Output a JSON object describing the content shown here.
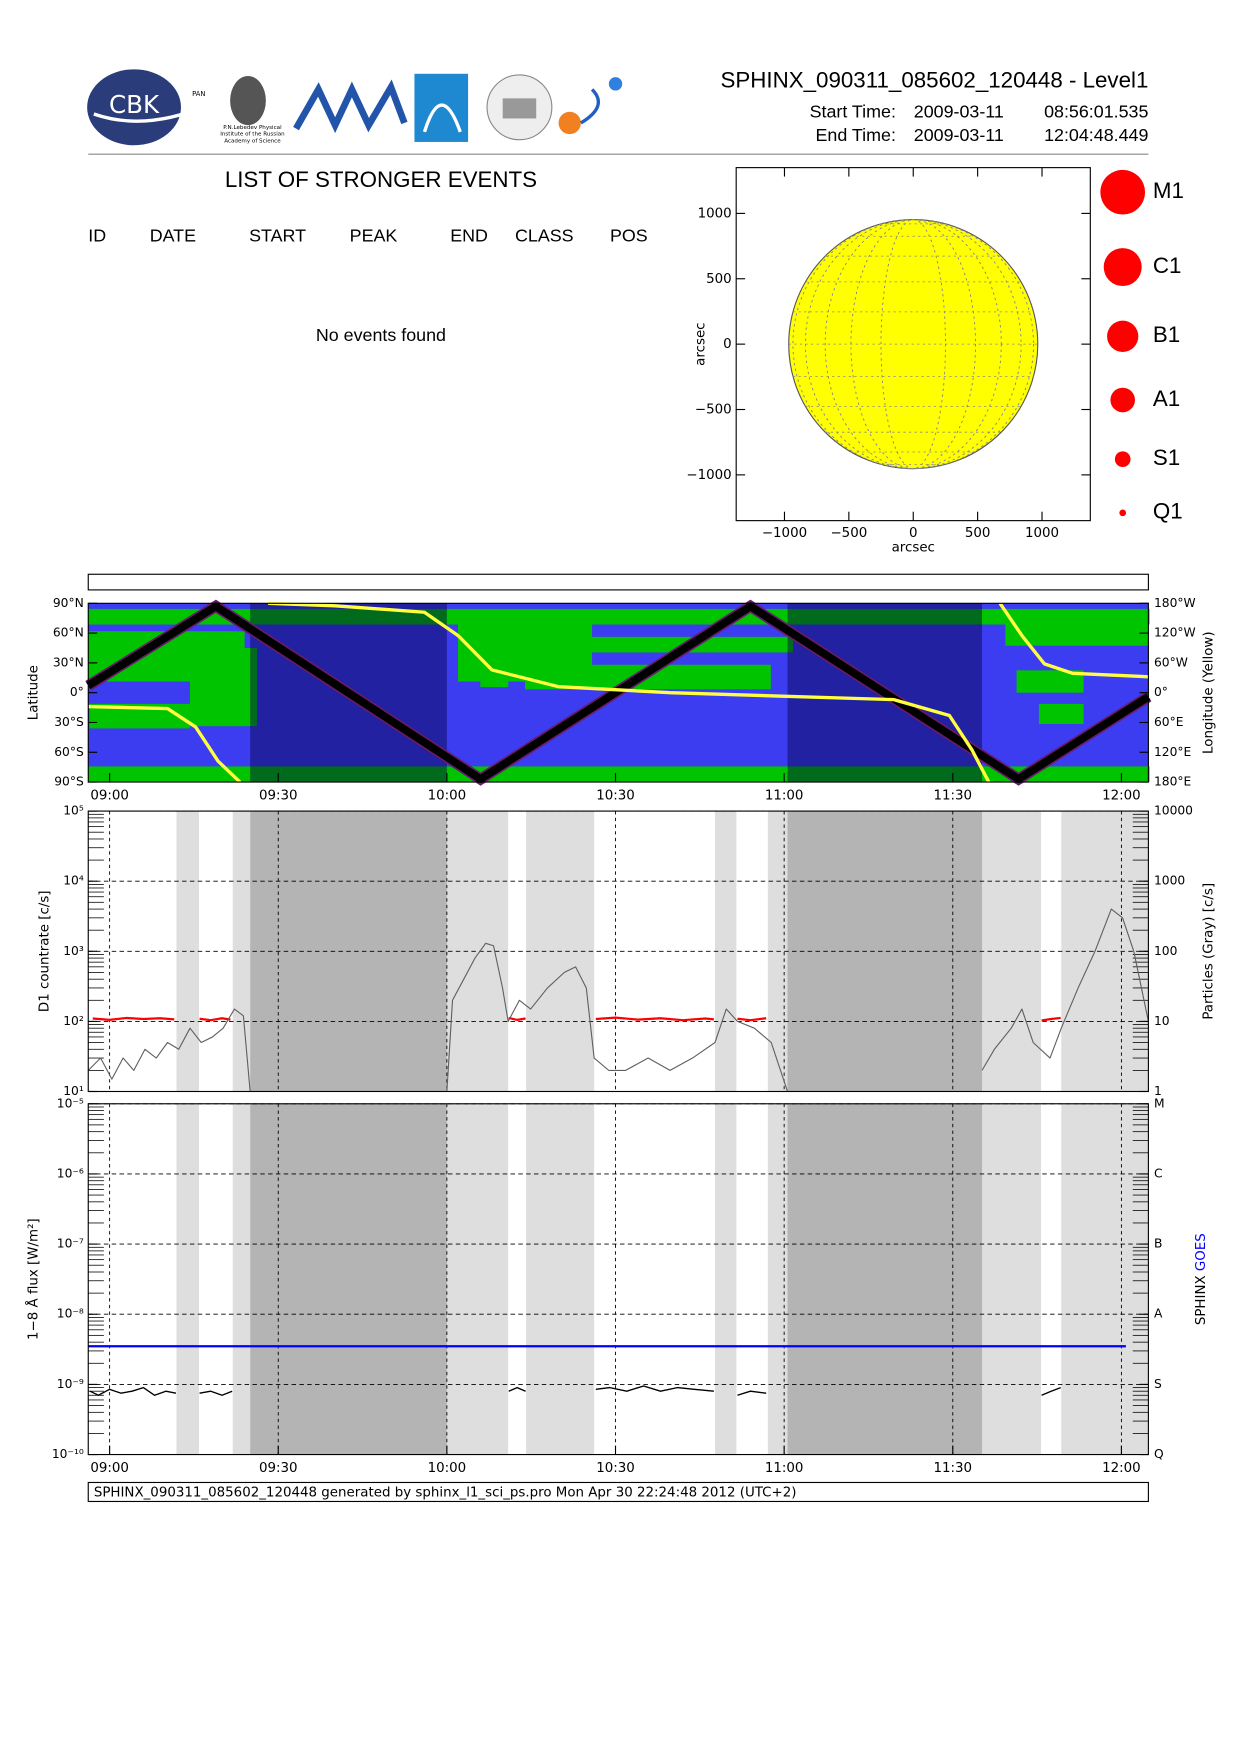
{
  "header": {
    "title": "SPHINX_090311_085602_120448 - Level1",
    "start_label": "Start Time:",
    "start_date": "2009-03-11",
    "start_time": "08:56:01.535",
    "end_label": "End Time:",
    "end_date": "2009-03-11",
    "end_time": "12:04:48.449",
    "logos": {
      "cbk": "CBK",
      "pan": "PAN",
      "lebedev": [
        "P.N.Lebedev Physical",
        "Institute of the Russian",
        "Academy of Science"
      ]
    }
  },
  "events": {
    "title": "LIST OF STRONGER EVENTS",
    "columns": [
      "ID",
      "DATE",
      "START",
      "PEAK",
      "END",
      "CLASS",
      "POS"
    ],
    "empty": "No events found"
  },
  "flare_legend": [
    "M1",
    "C1",
    "B1",
    "A1",
    "S1",
    "Q1"
  ],
  "shading": {
    "light": [
      [
        551.9,
        555.9
      ],
      [
        561.9,
        565.0
      ],
      [
        600.0,
        610.9
      ],
      [
        614.1,
        626.2
      ],
      [
        647.7,
        651.5
      ],
      [
        657.1,
        660.6
      ],
      [
        695.2,
        705.7
      ],
      [
        709.3,
        724.8
      ]
    ],
    "dark": [
      [
        565.0,
        600.0
      ],
      [
        660.6,
        695.2
      ]
    ]
  },
  "footer": "SPHINX_090311_085602_120448 generated by sphinx_l1_sci_ps.pro Mon Apr 30 22:24:48 2012 (UTC+2)",
  "chart_data": [
    {
      "type": "disk",
      "xlabel": "arcsec",
      "ylabel": "arcsec",
      "xlim": [
        -1375,
        1375
      ],
      "ylim": [
        -1350,
        1350
      ],
      "xticks": [
        {
          "value": -1000,
          "label": "−1000"
        },
        {
          "value": -500,
          "label": "−500"
        },
        0,
        500,
        1000
      ],
      "yticks": [
        {
          "value": -1000,
          "label": "−1000"
        },
        {
          "value": -500,
          "label": "−500"
        },
        0,
        500,
        1000
      ],
      "disk_radius": 967,
      "disk_color": "#ffff00"
    },
    {
      "type": "line",
      "ylabel": "Latitude",
      "y2label": "Longitude (Yellow)",
      "background": "#3c3cf0",
      "xlim": [
        536.2,
        724.8
      ],
      "xticks": [
        {
          "value": 540,
          "label": "09:00"
        },
        {
          "value": 570,
          "label": "09:30"
        },
        {
          "value": 600,
          "label": "10:00"
        },
        {
          "value": 630,
          "label": "10:30"
        },
        {
          "value": 660,
          "label": "11:00"
        },
        {
          "value": 690,
          "label": "11:30"
        },
        {
          "value": 720,
          "label": "12:00"
        }
      ],
      "ylim": [
        -90,
        90
      ],
      "yticks": [
        {
          "value": 90,
          "label": "90°N"
        },
        {
          "value": 60,
          "label": "60°N"
        },
        {
          "value": 30,
          "label": "30°N"
        },
        {
          "value": 0,
          "label": "0°"
        },
        {
          "value": -30,
          "label": "30°S"
        },
        {
          "value": -60,
          "label": "60°S"
        },
        {
          "value": -90,
          "label": "90°S"
        }
      ],
      "y2lim": [
        180,
        -180
      ],
      "y2ticks": [
        {
          "value": -180,
          "label": "180°W"
        },
        {
          "value": -120,
          "label": "120°W"
        },
        {
          "value": -60,
          "label": "60°W"
        },
        {
          "value": 0,
          "label": "0°"
        },
        {
          "value": 60,
          "label": "60°E"
        },
        {
          "value": 120,
          "label": "120°E"
        },
        {
          "value": 180,
          "label": "180°E"
        }
      ],
      "series": [
        {
          "color": "#000000",
          "x": [
            536.2,
            558.9,
            606.0,
            654.0,
            701.7,
            724.8
          ],
          "values": [
            7,
            87,
            -87,
            87,
            -87,
            -4
          ]
        },
        {
          "color": "#ffff40",
          "axis": "y2",
          "x": [
            536.2,
            550.3,
            555.3,
            559.3,
            563.2,
            565.5,
            568.2,
            580.1,
            596.0,
            602.0,
            608.0,
            619.9,
            639.7,
            659.6,
            679.5,
            689.4,
            693.4,
            696.4,
            697.4,
            698.4,
            702.3,
            706.3,
            711.3,
            724.8
          ],
          "values": [
            28,
            32,
            69,
            138,
            180,
            null,
            -180,
            -175,
            -162,
            -115,
            -46,
            -12,
            0,
            7,
            14,
            46,
            115,
            180,
            null,
            -180,
            -115,
            -58,
            -39,
            -32
          ]
        }
      ]
    },
    {
      "type": "line",
      "log_y": true,
      "ylabel": "D1 countrate [c/s]",
      "y2label": "Particles (Gray) [c/s]",
      "xlim": [
        536.2,
        724.8
      ],
      "ylim": [
        10,
        100000
      ],
      "yticks": [
        {
          "value": 10,
          "label": "10¹"
        },
        {
          "value": 100,
          "label": "10²"
        },
        {
          "value": 1000,
          "label": "10³"
        },
        {
          "value": 10000,
          "label": "10⁴"
        },
        {
          "value": 100000,
          "label": "10⁵"
        }
      ],
      "y2lim": [
        1,
        10000
      ],
      "y2ticks": [
        1,
        10,
        100,
        1000,
        10000
      ],
      "series": [
        {
          "color": "#ff0000",
          "x": [
            537,
            540,
            543,
            546,
            549,
            551.5,
            553.5,
            556,
            558,
            560,
            561.5,
            585,
            611,
            612.5,
            614,
            620,
            626.5,
            630,
            634,
            638,
            642,
            646,
            647.5,
            649.5,
            651.7,
            654,
            656.8,
            680,
            705.8,
            707.5,
            709.2
          ],
          "values": [
            110,
            105,
            112,
            108,
            111,
            107,
            null,
            109,
            104,
            111,
            106,
            null,
            112,
            105,
            110,
            null,
            108,
            113,
            106,
            111,
            104,
            110,
            107,
            null,
            109,
            104,
            111,
            null,
            103,
            108,
            112
          ]
        },
        {
          "color": "#606060",
          "axis": "y2",
          "x": [
            536.2,
            538.4,
            540.4,
            542.4,
            544.3,
            546.3,
            548.3,
            550.3,
            552.3,
            554.3,
            556.3,
            558.3,
            560.2,
            562.2,
            563.8,
            565.0,
            568.2,
            600.0,
            601.0,
            603.0,
            605.0,
            606.9,
            608.3,
            609.9,
            610.9,
            612.9,
            614.9,
            617.9,
            620.9,
            622.9,
            624.8,
            626.2,
            628.8,
            631.8,
            635.8,
            639.7,
            643.7,
            647.7,
            649.7,
            651.7,
            654.7,
            657.7,
            660.6,
            663.6,
            695.2,
            697.4,
            700.4,
            702.3,
            704.3,
            707.3,
            709.3,
            712.3,
            715.3,
            718.2,
            720.2,
            722.2,
            724.8
          ],
          "values": [
            2,
            3,
            1.5,
            3,
            2,
            4,
            3,
            5,
            4,
            8,
            5,
            6,
            8,
            15,
            12,
            1,
            null,
            1,
            20,
            40,
            80,
            130,
            120,
            30,
            10,
            20,
            15,
            30,
            50,
            60,
            30,
            3,
            2,
            2,
            3,
            2,
            3,
            5,
            15,
            10,
            8,
            5,
            1,
            null,
            2,
            4,
            8,
            15,
            5,
            3,
            8,
            30,
            100,
            400,
            300,
            100,
            10
          ]
        }
      ]
    },
    {
      "type": "line",
      "log_y": true,
      "ylabel": "1−8 Å flux [W/m²]",
      "xlim": [
        536.2,
        724.8
      ],
      "xticks": [
        {
          "value": 540,
          "label": "09:00"
        },
        {
          "value": 570,
          "label": "09:30"
        },
        {
          "value": 600,
          "label": "10:00"
        },
        {
          "value": 630,
          "label": "10:30"
        },
        {
          "value": 660,
          "label": "11:00"
        },
        {
          "value": 690,
          "label": "11:30"
        },
        {
          "value": 720,
          "label": "12:00"
        }
      ],
      "ylim": [
        1e-10,
        1e-05
      ],
      "yticks": [
        {
          "value": 1e-10,
          "label": "10⁻¹⁰"
        },
        {
          "value": 1e-09,
          "label": "10⁻⁹"
        },
        {
          "value": 1e-08,
          "label": "10⁻⁸"
        },
        {
          "value": 1e-07,
          "label": "10⁻⁷"
        },
        {
          "value": 1e-06,
          "label": "10⁻⁶"
        },
        {
          "value": 1e-05,
          "label": "10⁻⁵"
        }
      ],
      "y2lim": [
        1e-10,
        1e-05
      ],
      "y2ticks": [
        {
          "value": 1e-10,
          "label": "Q"
        },
        {
          "value": 1e-09,
          "label": "S"
        },
        {
          "value": 1e-08,
          "label": "A"
        },
        {
          "value": 1e-07,
          "label": "B"
        },
        {
          "value": 1e-06,
          "label": "C"
        },
        {
          "value": 1e-05,
          "label": "M"
        }
      ],
      "series": [
        {
          "name": "SPHINX",
          "color": "#000000",
          "x": [
            536.5,
            538,
            540,
            542,
            544,
            546,
            548,
            550,
            551.8,
            553,
            556,
            558,
            560,
            561.8,
            585,
            611,
            612.5,
            614,
            620,
            626.5,
            629,
            632,
            635,
            638,
            641,
            644,
            647.5,
            649.5,
            651.7,
            654,
            656.8,
            680,
            705.8,
            707.5,
            709.2
          ],
          "values": [
            8e-10,
            7e-10,
            8.5e-10,
            7.5e-10,
            8e-10,
            9e-10,
            7e-10,
            8e-10,
            7.5e-10,
            null,
            7.5e-10,
            8e-10,
            7e-10,
            8e-10,
            null,
            8e-10,
            9e-10,
            8e-10,
            null,
            8.5e-10,
            9e-10,
            8e-10,
            9.5e-10,
            8e-10,
            9e-10,
            8.5e-10,
            8e-10,
            null,
            7e-10,
            8e-10,
            7.5e-10,
            null,
            7e-10,
            8e-10,
            9e-10
          ]
        },
        {
          "name": "GOES",
          "color": "#0000ff",
          "x": [
            536.2,
            720.8
          ],
          "values": [
            3.5e-09,
            3.5e-09
          ]
        }
      ]
    }
  ]
}
